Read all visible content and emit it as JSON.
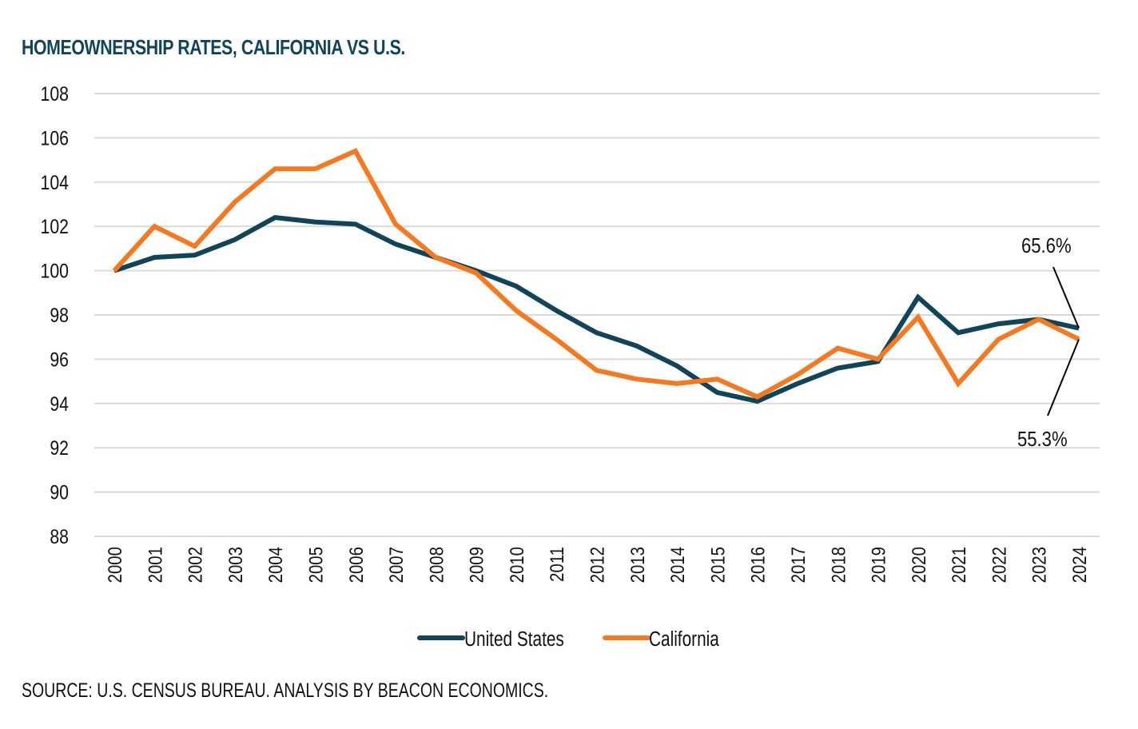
{
  "chart_data": {
    "type": "line",
    "title": "HOMEOWNERSHIP RATES, CALIFORNIA VS U.S.",
    "xlabel": "",
    "ylabel": "",
    "ylim": [
      88,
      108
    ],
    "yticks": [
      "108",
      "106",
      "104",
      "102",
      "100",
      "98",
      "96",
      "94",
      "92",
      "90",
      "88"
    ],
    "ytick_values": [
      108,
      106,
      104,
      102,
      100,
      98,
      96,
      94,
      92,
      90,
      88
    ],
    "grid": true,
    "legend_position": "bottom-center",
    "x": [
      "2000",
      "2001",
      "2002",
      "2003",
      "2004",
      "2005",
      "2006",
      "2007",
      "2008",
      "2009",
      "2010",
      "2011",
      "2012",
      "2013",
      "2014",
      "2015",
      "2016",
      "2017",
      "2018",
      "2019",
      "2020",
      "2021",
      "2022",
      "2023",
      "2024"
    ],
    "series": [
      {
        "name": "United States",
        "color": "#0f4459",
        "values": [
          100.0,
          100.6,
          100.7,
          101.4,
          102.4,
          102.2,
          102.1,
          101.2,
          100.6,
          100.0,
          99.3,
          98.2,
          97.2,
          96.6,
          95.7,
          94.5,
          94.1,
          94.9,
          95.6,
          95.9,
          98.8,
          97.2,
          97.6,
          97.8,
          97.4
        ]
      },
      {
        "name": "California",
        "color": "#f47920",
        "values": [
          100.0,
          102.0,
          101.1,
          103.1,
          104.6,
          104.6,
          105.4,
          102.1,
          100.6,
          99.9,
          98.2,
          96.9,
          95.5,
          95.1,
          94.9,
          95.1,
          94.3,
          95.3,
          96.5,
          96.0,
          97.9,
          94.9,
          96.9,
          97.8,
          96.9
        ]
      }
    ],
    "annotations": [
      {
        "text": "65.6%",
        "series": "United States",
        "x": "2024"
      },
      {
        "text": "55.3%",
        "series": "California",
        "x": "2024"
      }
    ],
    "source": "SOURCE: U.S. CENSUS BUREAU. ANALYSIS BY BEACON ECONOMICS."
  }
}
